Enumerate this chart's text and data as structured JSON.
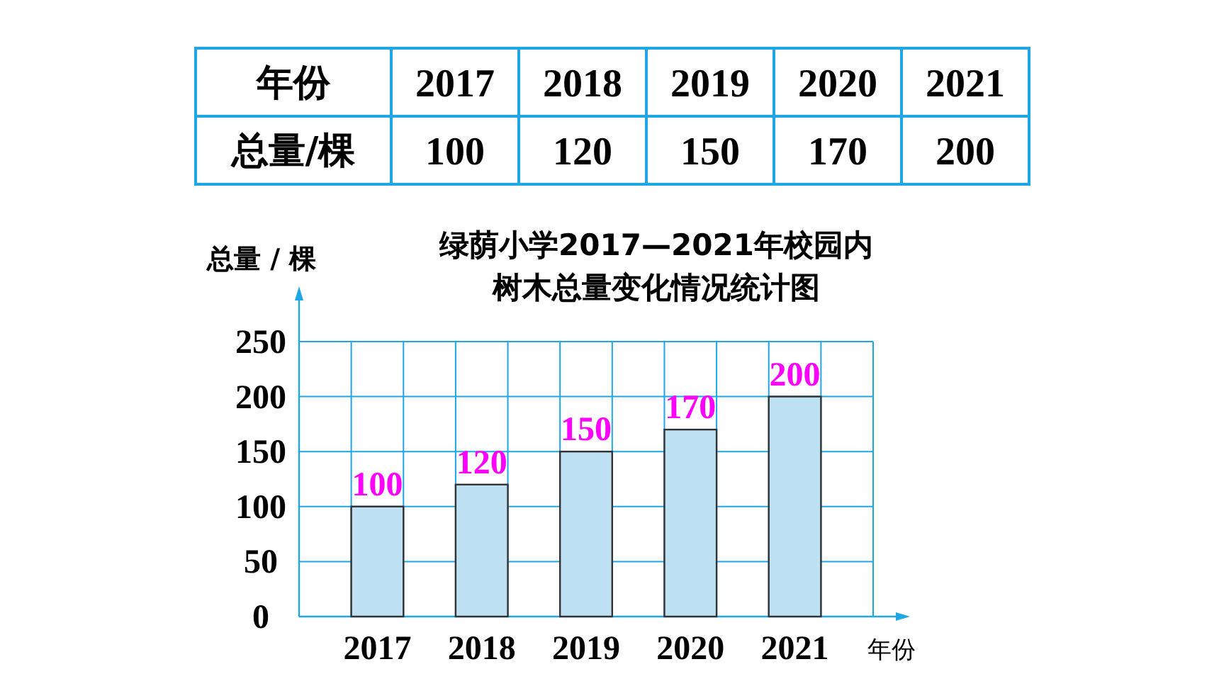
{
  "chart_data": {
    "type": "bar",
    "title": "绿荫小学2017—2021年校园内",
    "subtitle": "树木总量变化情况统计图",
    "xlabel": "年份",
    "ylabel": "总量 / 棵",
    "categories": [
      "2017",
      "2018",
      "2019",
      "2020",
      "2021"
    ],
    "values": [
      100,
      120,
      150,
      170,
      200
    ],
    "color": "#bde0f2",
    "value_labels": [
      "100",
      "120",
      "150",
      "170",
      "200"
    ],
    "data_labels": true,
    "annotations": [
      "年份",
      "总量/棵"
    ],
    "ylim": [
      0,
      250
    ],
    "yticks": [
      0,
      50,
      100,
      150,
      200,
      250
    ],
    "grid": true
  }
}
